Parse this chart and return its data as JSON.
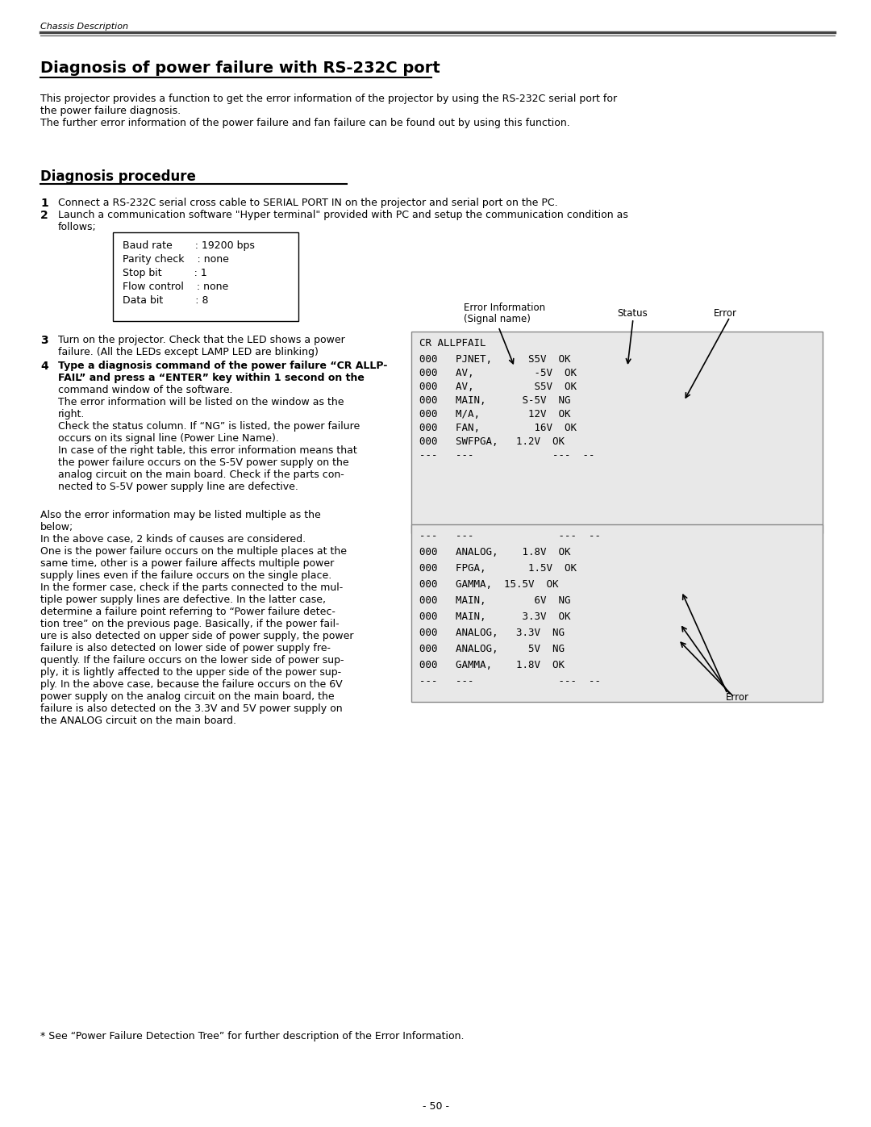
{
  "page_bg": "#ffffff",
  "header_text": "Chassis Description",
  "section_title": "Diagnosis of power failure with RS-232C port",
  "intro_line1": "This projector provides a function to get the error information of the projector by using the RS-232C serial port for",
  "intro_line2": "the power failure diagnosis.",
  "intro_line3": "The further error information of the power failure and fan failure can be found out by using this function.",
  "subsection_title": "Diagnosis procedure",
  "step1_num": "1",
  "step1_text": "Connect a RS-232C serial cross cable to SERIAL PORT IN on the projector and serial port on the PC.",
  "step2_num": "2",
  "step2_line1": "Launch a communication software \"Hyper terminal\" provided with PC and setup the communication condition as",
  "step2_line2": "follows;",
  "box_line1": "Baud rate       : 19200 bps",
  "box_line2": "Parity check    : none",
  "box_line3": "Stop bit          : 1",
  "box_line4": "Flow control    : none",
  "box_line5": "Data bit          : 8",
  "label_error_info_1": "Error Information",
  "label_error_info_2": "(Signal name)",
  "label_status": "Status",
  "label_error1": "Error",
  "step3_num": "3",
  "step3_line1": "Turn on the projector. Check that the LED shows a power",
  "step3_line2": "failure. (All the LEDs except LAMP LED are blinking)",
  "step4_num": "4",
  "step4_line1": "Type a diagnosis command of the power failure “CR ALLP-",
  "step4_line2": "FAIL” and press a “ENTER” key within 1 second on the",
  "step4_line3": "command window of the software.",
  "step4_line4": "The error information will be listed on the window as the",
  "step4_line5": "right.",
  "step4_line6": "Check the status column. If “NG” is listed, the power failure",
  "step4_line7": "occurs on its signal line (Power Line Name).",
  "step4_line8": "In case of the right table, this error information means that",
  "step4_line9": "the power failure occurs on the S-5V power supply on the",
  "step4_line10": "analog circuit on the main board. Check if the parts con-",
  "step4_line11": "nected to S-5V power supply line are defective.",
  "table1_header": "CR ALLPFAIL",
  "table1_rows": [
    "000   PJNET,      S5V  OK",
    "000   AV,          -5V  OK",
    "000   AV,          S5V  OK",
    "000   MAIN,      S-5V  NG",
    "000   M/A,        12V  OK",
    "000   FAN,         16V  OK",
    "000   SWFPGA,   1.2V  OK",
    "---   ---             ---  --"
  ],
  "para_also_1": "Also the error information may be listed multiple as the",
  "para_also_2": "below;",
  "para_in_above": "In the above case, 2 kinds of causes are considered.",
  "para_one_1": "One is the power failure occurs on the multiple places at the",
  "para_one_2": "same time, other is a power failure affects multiple power",
  "para_one_3": "supply lines even if the failure occurs on the single place.",
  "para_former_1": "In the former case, check if the parts connected to the mul-",
  "para_former_2": "tiple power supply lines are defective. In the latter case,",
  "para_former_3": "determine a failure point referring to “Power failure detec-",
  "para_former_4": "tion tree” on the previous page. Basically, if the power fail-",
  "para_former_5": "ure is also detected on upper side of power supply, the power",
  "para_former_6": "failure is also detected on lower side of power supply fre-",
  "para_former_7": "quently. If the failure occurs on the lower side of power sup-",
  "para_former_8": "ply, it is lightly affected to the upper side of the power sup-",
  "para_former_9": "ply. In the above case, because the failure occurs on the 6V",
  "para_former_10": "power supply on the analog circuit on the main board, the",
  "para_former_11": "failure is also detected on the 3.3V and 5V power supply on",
  "para_former_12": "the ANALOG circuit on the main board.",
  "table2_rows": [
    "---   ---              ---  --",
    "000   ANALOG,    1.8V  OK",
    "000   FPGA,       1.5V  OK",
    "000   GAMMA,  15.5V  OK",
    "000   MAIN,        6V  NG",
    "000   MAIN,      3.3V  OK",
    "000   ANALOG,   3.3V  NG",
    "000   ANALOG,     5V  NG",
    "000   GAMMA,    1.8V  OK",
    "---   ---              ---  --"
  ],
  "label_error2": "Error",
  "footnote": "* See “Power Failure Detection Tree” for further description of the Error Information.",
  "page_number": "- 50 -"
}
